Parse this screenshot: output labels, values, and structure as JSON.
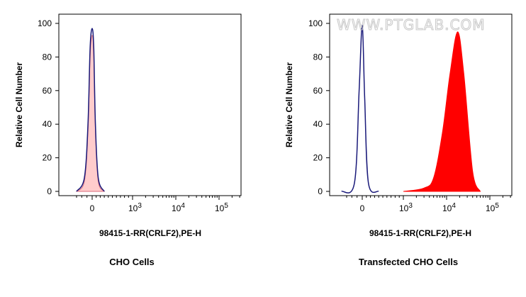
{
  "chart_data": [
    {
      "type": "histogram",
      "title": "CHO Cells",
      "xlabel": "98415-1-RR(CRLF2),PE-H",
      "ylabel": "Relative Cell Number",
      "x_scale": "biexponential",
      "ylim": [
        0,
        100
      ],
      "y_ticks": [
        "0",
        "20",
        "40",
        "60",
        "80",
        "100"
      ],
      "x_ticks": [
        "0",
        "10^3",
        "10^4",
        "10^5"
      ],
      "colors": {
        "control": "#1a1a7a",
        "sample_fill": "#ffcccc",
        "sample_line": "#d86a7a"
      },
      "series": [
        {
          "role": "isotype control (outline)",
          "peak_at": 0,
          "peak_height": 97,
          "x": [
            -300,
            -150,
            -80,
            -40,
            0,
            40,
            80,
            150,
            300
          ],
          "y": [
            0,
            8,
            40,
            85,
            97,
            85,
            40,
            8,
            0
          ]
        },
        {
          "role": "stained sample (filled)",
          "peak_at": 0,
          "peak_height": 93,
          "x": [
            -300,
            -150,
            -80,
            -40,
            0,
            40,
            80,
            150,
            300
          ],
          "y": [
            0,
            6,
            36,
            80,
            93,
            80,
            36,
            6,
            0
          ]
        }
      ]
    },
    {
      "type": "histogram",
      "title": "Transfected CHO Cells",
      "xlabel": "98415-1-RR(CRLF2),PE-H",
      "ylabel": "Relative Cell Number",
      "x_scale": "biexponential",
      "ylim": [
        0,
        100
      ],
      "y_ticks": [
        "0",
        "20",
        "40",
        "60",
        "80",
        "100"
      ],
      "x_ticks": [
        "0",
        "10^3",
        "10^4",
        "10^5"
      ],
      "colors": {
        "control": "#1a1a7a",
        "sample_fill": "#ff0000"
      },
      "series": [
        {
          "role": "isotype control (outline)",
          "peak_at": 0,
          "peak_height": 99,
          "x": [
            -400,
            -150,
            -60,
            0,
            60,
            150,
            400
          ],
          "y": [
            0,
            5,
            60,
            99,
            55,
            5,
            0
          ]
        },
        {
          "role": "stained sample (filled)",
          "peak_at": 18000,
          "peak_height": 95,
          "x": [
            1000,
            3000,
            5000,
            8000,
            12000,
            18000,
            25000,
            40000,
            60000
          ],
          "y": [
            0,
            2,
            8,
            35,
            70,
            95,
            70,
            12,
            0
          ]
        }
      ]
    }
  ],
  "watermark": "WWW.PTGLAB.COM"
}
